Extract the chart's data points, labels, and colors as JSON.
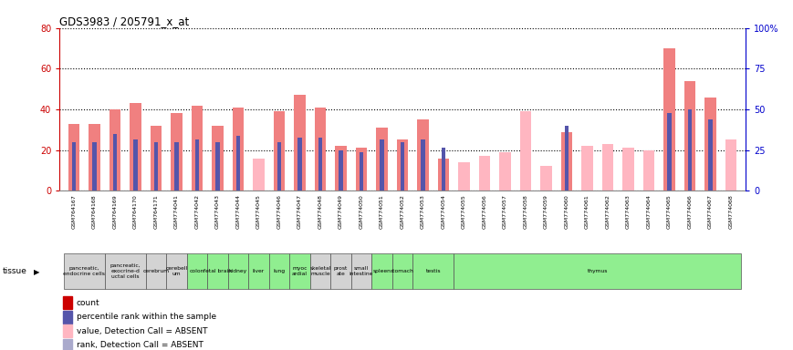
{
  "title": "GDS3983 / 205791_x_at",
  "samples": [
    "GSM764167",
    "GSM764168",
    "GSM764169",
    "GSM764170",
    "GSM764171",
    "GSM774041",
    "GSM774042",
    "GSM774043",
    "GSM774044",
    "GSM774045",
    "GSM774046",
    "GSM774047",
    "GSM774048",
    "GSM774049",
    "GSM774050",
    "GSM774051",
    "GSM774052",
    "GSM774053",
    "GSM774054",
    "GSM774055",
    "GSM774056",
    "GSM774057",
    "GSM774058",
    "GSM774059",
    "GSM774060",
    "GSM774061",
    "GSM774062",
    "GSM774063",
    "GSM774064",
    "GSM774065",
    "GSM774066",
    "GSM774067",
    "GSM774068"
  ],
  "pink_values": [
    33,
    33,
    40,
    43,
    32,
    38,
    42,
    32,
    41,
    16,
    39,
    47,
    41,
    22,
    21,
    31,
    25,
    35,
    16,
    14,
    17,
    19,
    39,
    12,
    29,
    22,
    23,
    21,
    20,
    70,
    54,
    46,
    25
  ],
  "blue_values": [
    24,
    24,
    28,
    25,
    24,
    24,
    25,
    24,
    27,
    0,
    24,
    26,
    26,
    20,
    19,
    25,
    24,
    25,
    21,
    0,
    0,
    0,
    0,
    0,
    32,
    0,
    0,
    0,
    0,
    38,
    40,
    35,
    0
  ],
  "pink_absent": [
    false,
    false,
    false,
    false,
    false,
    false,
    false,
    false,
    false,
    true,
    false,
    false,
    false,
    false,
    false,
    false,
    false,
    false,
    false,
    true,
    true,
    true,
    true,
    true,
    false,
    true,
    true,
    true,
    true,
    false,
    false,
    false,
    true
  ],
  "blue_absent": [
    false,
    false,
    false,
    false,
    false,
    false,
    false,
    false,
    false,
    false,
    false,
    false,
    false,
    false,
    false,
    false,
    false,
    false,
    false,
    false,
    false,
    false,
    false,
    false,
    false,
    false,
    false,
    false,
    false,
    false,
    false,
    false,
    false
  ],
  "tissue_groups": [
    {
      "label": "pancreatic,\nendocrine cells",
      "start": 0,
      "end": 1,
      "color": "#d3d3d3"
    },
    {
      "label": "pancreatic,\nexocrine-d\nuctal cells",
      "start": 2,
      "end": 3,
      "color": "#d3d3d3"
    },
    {
      "label": "cerebrum",
      "start": 4,
      "end": 4,
      "color": "#d3d3d3"
    },
    {
      "label": "cerebell\num",
      "start": 5,
      "end": 5,
      "color": "#d3d3d3"
    },
    {
      "label": "colon",
      "start": 6,
      "end": 6,
      "color": "#90ee90"
    },
    {
      "label": "fetal brain",
      "start": 7,
      "end": 7,
      "color": "#90ee90"
    },
    {
      "label": "kidney",
      "start": 8,
      "end": 8,
      "color": "#90ee90"
    },
    {
      "label": "liver",
      "start": 9,
      "end": 9,
      "color": "#90ee90"
    },
    {
      "label": "lung",
      "start": 10,
      "end": 10,
      "color": "#90ee90"
    },
    {
      "label": "myoc\nardial",
      "start": 11,
      "end": 11,
      "color": "#90ee90"
    },
    {
      "label": "skeletal\nmuscle",
      "start": 12,
      "end": 12,
      "color": "#d3d3d3"
    },
    {
      "label": "prost\nate",
      "start": 13,
      "end": 13,
      "color": "#d3d3d3"
    },
    {
      "label": "small\nintestine",
      "start": 14,
      "end": 14,
      "color": "#d3d3d3"
    },
    {
      "label": "spleen",
      "start": 15,
      "end": 15,
      "color": "#90ee90"
    },
    {
      "label": "stomach",
      "start": 16,
      "end": 16,
      "color": "#90ee90"
    },
    {
      "label": "testis",
      "start": 17,
      "end": 18,
      "color": "#90ee90"
    },
    {
      "label": "thymus",
      "start": 19,
      "end": 32,
      "color": "#90ee90"
    }
  ],
  "ylim_left": [
    0,
    80
  ],
  "ylim_right": [
    0,
    100
  ],
  "yticks_left": [
    0,
    20,
    40,
    60,
    80
  ],
  "yticks_right": [
    0,
    25,
    50,
    75,
    100
  ],
  "yticklabels_right": [
    "0",
    "25",
    "50",
    "75",
    "100%"
  ],
  "left_axis_color": "#cc0000",
  "right_axis_color": "#0000cc",
  "pink_present": "#f08080",
  "pink_absent_c": "#ffb6c1",
  "blue_present": "#5555aa",
  "blue_absent_c": "#aaaacc",
  "xtick_bg": "#d3d3d3",
  "legend_items": [
    {
      "color": "#cc0000",
      "label": "count"
    },
    {
      "color": "#5555aa",
      "label": "percentile rank within the sample"
    },
    {
      "color": "#ffb6c1",
      "label": "value, Detection Call = ABSENT"
    },
    {
      "color": "#aaaacc",
      "label": "rank, Detection Call = ABSENT"
    }
  ]
}
